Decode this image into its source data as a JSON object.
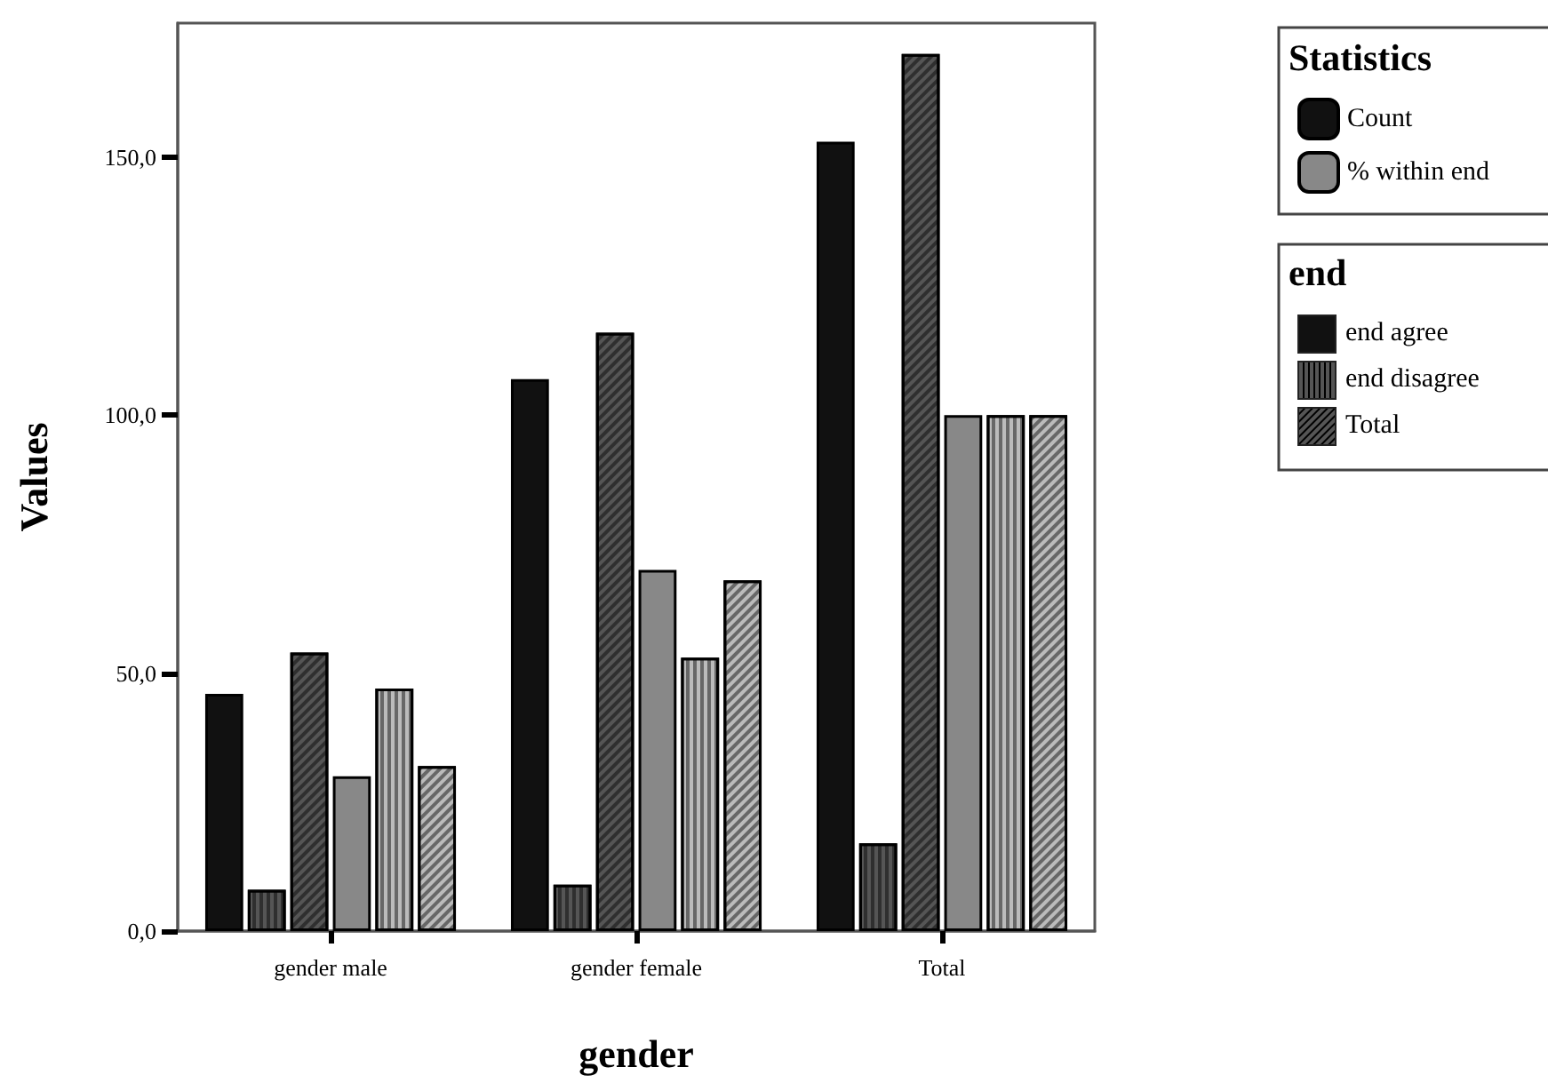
{
  "chart_data": {
    "type": "bar",
    "xlabel": "gender",
    "ylabel": "Values",
    "legend_title": "Statistics",
    "categories": [
      "gender male",
      "gender female",
      "Total"
    ],
    "series": [
      {
        "name": "Count",
        "color": "#111111",
        "values": [
          46,
          107,
          153
        ]
      },
      {
        "color": "#555555",
        "values": [
          8,
          9,
          17
        ]
      },
      {
        "color": "#555555",
        "values": [
          54,
          116,
          170
        ]
      },
      {
        "name": "% within end",
        "color": "#888888",
        "values": [
          30,
          70,
          100
        ]
      },
      {
        "color": "#bbbbbb",
        "values": [
          47,
          53,
          100
        ]
      },
      {
        "color": "#bbbbbb",
        "values": [
          32,
          68,
          100
        ]
      }
    ],
    "annotations": [
      "end",
      "end agree",
      "end disagree",
      "Total"
    ],
    "ylim": [
      0,
      176
    ],
    "yticks": [
      {
        "value": 0,
        "label": "0,0"
      },
      {
        "value": 50,
        "label": "50,0"
      },
      {
        "value": 100,
        "label": "100,0"
      },
      {
        "value": 150,
        "label": "150,0"
      }
    ],
    "grid": false,
    "legend": "top right"
  }
}
